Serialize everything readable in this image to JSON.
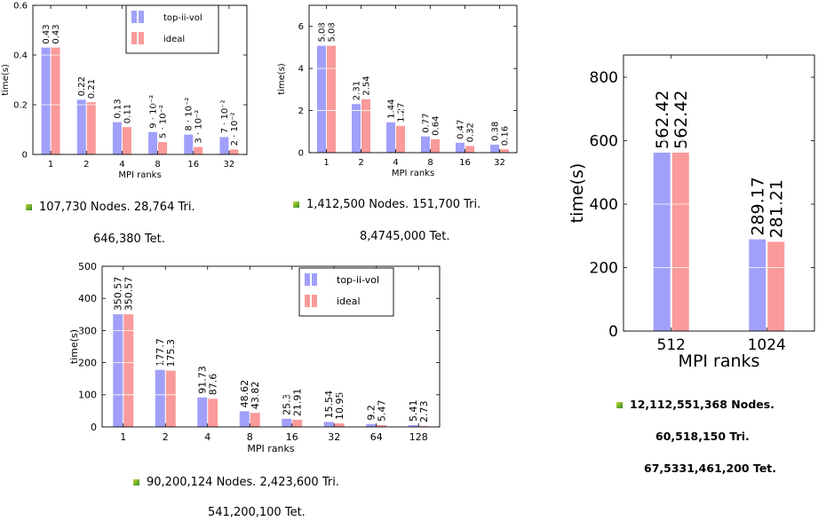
{
  "charts": [
    {
      "type": "bar",
      "categories": [
        "1",
        "2",
        "4",
        "8",
        "16",
        "32"
      ],
      "series": [
        {
          "name": "top-ii-vol",
          "values": [
            0.43,
            0.22,
            0.13,
            0.09,
            0.08,
            0.07
          ],
          "labels": [
            "0.43",
            "0.22",
            "0.13",
            "9 · 10⁻²",
            "8 · 10⁻²",
            "7 · 10⁻²"
          ],
          "color": "#a0a0fa"
        },
        {
          "name": "ideal",
          "values": [
            0.43,
            0.21,
            0.11,
            0.05,
            0.03,
            0.02
          ],
          "labels": [
            "0.43",
            "0.21",
            "0.11",
            "5 · 10⁻²",
            "3 · 10⁻²",
            "2 · 10⁻²"
          ],
          "color": "#fa9a9a"
        }
      ],
      "xlabel": "MPI ranks",
      "ylabel": "time(s)",
      "ylim": [
        0,
        0.6
      ],
      "yticks": [
        0,
        0.2,
        0.4,
        0.6
      ],
      "ytick_labels": [
        "0",
        "0.2",
        "0.4",
        "0.6"
      ],
      "legend": "top-right",
      "caption": [
        "107,730 Nodes. 28,764 Tri.",
        "646,380 Tet."
      ]
    },
    {
      "type": "bar",
      "categories": [
        "1",
        "2",
        "4",
        "8",
        "16",
        "32"
      ],
      "series": [
        {
          "name": "",
          "values": [
            5.08,
            2.31,
            1.44,
            0.77,
            0.47,
            0.38
          ],
          "labels": [
            "5.08",
            "2.31",
            "1.44",
            "0.77",
            "0.47",
            "0.38"
          ],
          "color": "#a0a0fa"
        },
        {
          "name": "",
          "values": [
            5.08,
            2.54,
            1.27,
            0.64,
            0.32,
            0.16
          ],
          "labels": [
            "5.08",
            "2.54",
            "1.27",
            "0.64",
            "0.32",
            "0.16"
          ],
          "color": "#fa9a9a"
        }
      ],
      "xlabel": "MPI ranks",
      "ylabel": "time(s)",
      "ylim": [
        0,
        7
      ],
      "yticks": [
        0,
        2,
        4,
        6
      ],
      "ytick_labels": [
        "0",
        "2",
        "4",
        "6"
      ],
      "legend": "none",
      "caption": [
        "1,412,500 Nodes. 151,700 Tri.",
        "8,4745,000 Tet."
      ]
    },
    {
      "type": "bar",
      "categories": [
        "1",
        "2",
        "4",
        "8",
        "16",
        "32",
        "64",
        "128"
      ],
      "series": [
        {
          "name": "top-ii-vol",
          "values": [
            350.57,
            177.7,
            91.73,
            48.62,
            25.3,
            15.54,
            9.2,
            5.41
          ],
          "labels": [
            "350.57",
            "177.7",
            "91.73",
            "48.62",
            "25.3",
            "15.54",
            "9.2",
            "5.41"
          ],
          "color": "#a0a0fa"
        },
        {
          "name": "ideal",
          "values": [
            350.57,
            175.3,
            87.6,
            43.82,
            21.91,
            10.95,
            5.47,
            2.73
          ],
          "labels": [
            "350.57",
            "175.3",
            "87.6",
            "43.82",
            "21.91",
            "10.95",
            "5.47",
            "2.73"
          ],
          "color": "#fa9a9a"
        }
      ],
      "xlabel": "MPI ranks",
      "ylabel": "time(s)",
      "ylim": [
        0,
        500
      ],
      "yticks": [
        0,
        100,
        200,
        300,
        400,
        500
      ],
      "ytick_labels": [
        "0",
        "100",
        "200",
        "300",
        "400",
        "500"
      ],
      "legend": "top-right",
      "caption": [
        "90,200,124 Nodes. 2,423,600 Tri.",
        "541,200,100 Tet."
      ]
    },
    {
      "type": "bar",
      "categories": [
        "512",
        "1024"
      ],
      "series": [
        {
          "name": "",
          "values": [
            562.42,
            289.17
          ],
          "labels": [
            "562.42",
            "289.17"
          ],
          "color": "#a0a0fa"
        },
        {
          "name": "",
          "values": [
            562.42,
            281.21
          ],
          "labels": [
            "562.42",
            "281.21"
          ],
          "color": "#fa9a9a"
        }
      ],
      "xlabel": "MPI ranks",
      "ylabel": "time(s)",
      "ylim": [
        0,
        870
      ],
      "yticks": [
        0,
        200,
        400,
        600,
        800
      ],
      "ytick_labels": [
        "0",
        "200",
        "400",
        "600",
        "800"
      ],
      "legend": "none",
      "caption": [
        "12,112,551,368 Nodes.",
        "60,518,150 Tri.",
        "67,5331,461,200 Tet."
      ]
    }
  ]
}
